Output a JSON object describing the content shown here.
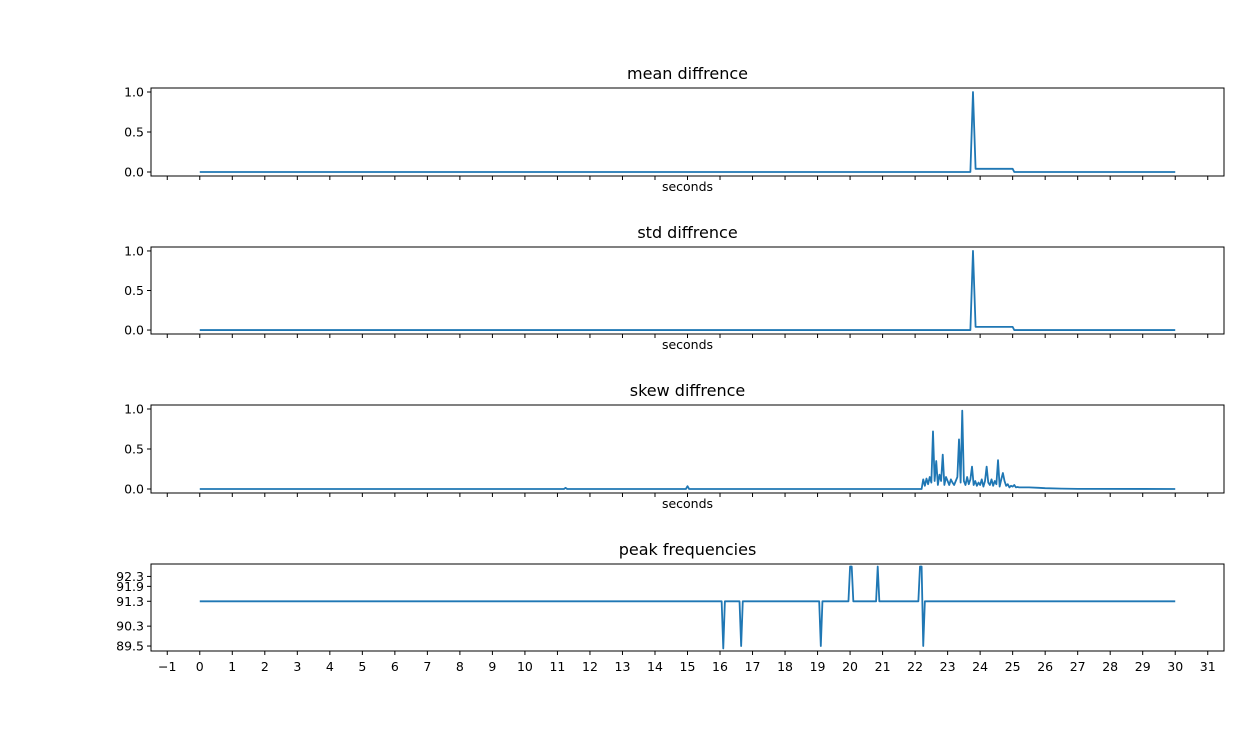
{
  "chart_data": [
    {
      "type": "line",
      "title": "mean diffrence",
      "xlabel": "seconds",
      "ylabel": "",
      "xlim": [
        -1.5,
        31.5
      ],
      "ylim": [
        -0.05,
        1.05
      ],
      "y_ticks": [
        0.0,
        0.5,
        1.0
      ],
      "y_tick_labels": [
        "0.0",
        "0.5",
        "1.0"
      ],
      "x_tick_labels_visible": false,
      "grid": false,
      "color": "#1f77b4",
      "series": [
        {
          "x": [
            0,
            23.7,
            23.78,
            23.86,
            25.0,
            25.05,
            30
          ],
          "y": [
            0,
            0,
            1.0,
            0.04,
            0.04,
            0.0,
            0.0
          ]
        }
      ]
    },
    {
      "type": "line",
      "title": "std diffrence",
      "xlabel": "seconds",
      "ylabel": "",
      "xlim": [
        -1.5,
        31.5
      ],
      "ylim": [
        -0.05,
        1.05
      ],
      "y_ticks": [
        0.0,
        0.5,
        1.0
      ],
      "y_tick_labels": [
        "0.0",
        "0.5",
        "1.0"
      ],
      "x_tick_labels_visible": false,
      "grid": false,
      "color": "#1f77b4",
      "series": [
        {
          "x": [
            0,
            23.7,
            23.78,
            23.86,
            25.0,
            25.05,
            30
          ],
          "y": [
            0,
            0,
            1.0,
            0.04,
            0.04,
            0.0,
            0.0
          ]
        }
      ]
    },
    {
      "type": "line",
      "title": "skew diffrence",
      "xlabel": "seconds",
      "ylabel": "",
      "xlim": [
        -1.5,
        31.5
      ],
      "ylim": [
        -0.05,
        1.05
      ],
      "y_ticks": [
        0.0,
        0.5,
        1.0
      ],
      "y_tick_labels": [
        "0.0",
        "0.5",
        "1.0"
      ],
      "x_tick_labels_visible": false,
      "grid": false,
      "color": "#1f77b4",
      "series": [
        {
          "x": [
            0,
            11.2,
            11.25,
            11.3,
            14.95,
            15.0,
            15.05,
            22.2,
            22.25,
            22.3,
            22.35,
            22.4,
            22.45,
            22.5,
            22.55,
            22.6,
            22.65,
            22.7,
            22.75,
            22.8,
            22.85,
            22.9,
            22.95,
            23.0,
            23.05,
            23.1,
            23.15,
            23.2,
            23.25,
            23.3,
            23.35,
            23.4,
            23.45,
            23.5,
            23.55,
            23.6,
            23.65,
            23.7,
            23.75,
            23.8,
            23.85,
            23.9,
            23.95,
            24.0,
            24.05,
            24.1,
            24.15,
            24.2,
            24.25,
            24.3,
            24.35,
            24.4,
            24.45,
            24.5,
            24.55,
            24.6,
            24.65,
            24.7,
            24.75,
            24.8,
            24.85,
            24.9,
            24.95,
            25.0,
            25.05,
            25.1,
            25.15,
            25.2,
            25.3,
            25.5,
            25.8,
            26.0,
            26.5,
            27.0,
            30.0
          ],
          "y": [
            0,
            0,
            0.015,
            0,
            0,
            0.035,
            0,
            0.0,
            0.12,
            0.04,
            0.13,
            0.06,
            0.15,
            0.08,
            0.72,
            0.1,
            0.35,
            0.05,
            0.18,
            0.1,
            0.43,
            0.05,
            0.15,
            0.1,
            0.05,
            0.12,
            0.08,
            0.05,
            0.1,
            0.15,
            0.62,
            0.08,
            0.98,
            0.1,
            0.05,
            0.15,
            0.06,
            0.12,
            0.28,
            0.05,
            0.1,
            0.04,
            0.08,
            0.05,
            0.12,
            0.03,
            0.1,
            0.28,
            0.08,
            0.05,
            0.12,
            0.04,
            0.1,
            0.06,
            0.36,
            0.03,
            0.12,
            0.2,
            0.1,
            0.04,
            0.06,
            0.02,
            0.04,
            0.03,
            0.05,
            0.02,
            0.025,
            0.02,
            0.02,
            0.02,
            0.015,
            0.01,
            0.005,
            0.002,
            0.0
          ]
        }
      ]
    },
    {
      "type": "line",
      "title": "peak frequencies",
      "xlabel": "",
      "ylabel": "",
      "xlim": [
        -1.5,
        31.5
      ],
      "ylim": [
        89.3,
        92.8
      ],
      "y_ticks": [
        89.5,
        90.3,
        91.3,
        91.9,
        92.3
      ],
      "y_tick_labels": [
        "89.5",
        "90.3",
        "91.3",
        "91.9",
        "92.3"
      ],
      "x_ticks": [
        -1,
        0,
        1,
        2,
        3,
        4,
        5,
        6,
        7,
        8,
        9,
        10,
        11,
        12,
        13,
        14,
        15,
        16,
        17,
        18,
        19,
        20,
        21,
        22,
        23,
        24,
        25,
        26,
        27,
        28,
        29,
        30,
        31
      ],
      "x_tick_labels": [
        "−1",
        "0",
        "1",
        "2",
        "3",
        "4",
        "5",
        "6",
        "7",
        "8",
        "9",
        "10",
        "11",
        "12",
        "13",
        "14",
        "15",
        "16",
        "17",
        "18",
        "19",
        "20",
        "21",
        "22",
        "23",
        "24",
        "25",
        "26",
        "27",
        "28",
        "29",
        "30",
        "31"
      ],
      "x_tick_labels_visible": true,
      "grid": false,
      "color": "#1f77b4",
      "series": [
        {
          "x": [
            0,
            16.05,
            16.1,
            16.15,
            16.2,
            16.6,
            16.65,
            16.7,
            16.75,
            19.05,
            19.1,
            19.15,
            19.2,
            19.95,
            20.0,
            20.05,
            20.1,
            20.15,
            20.8,
            20.85,
            20.9,
            20.95,
            22.1,
            22.15,
            22.2,
            22.25,
            22.3,
            30
          ],
          "y": [
            91.3,
            91.3,
            89.4,
            91.3,
            91.3,
            91.3,
            89.5,
            91.3,
            91.3,
            91.3,
            89.5,
            91.3,
            91.3,
            91.3,
            92.7,
            92.7,
            91.3,
            91.3,
            91.3,
            92.7,
            91.3,
            91.3,
            91.3,
            92.7,
            92.7,
            89.5,
            91.3,
            91.3
          ]
        }
      ]
    }
  ]
}
